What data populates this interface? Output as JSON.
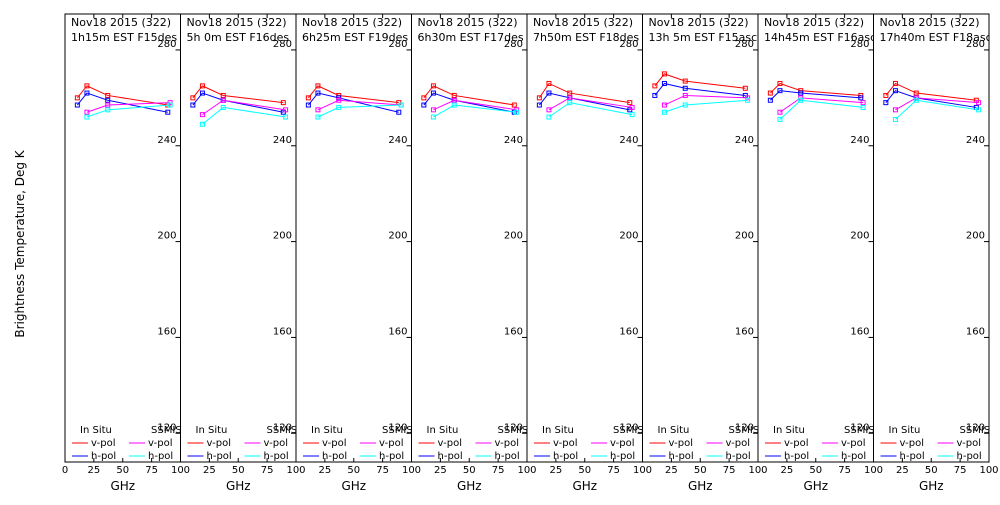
{
  "chart_data": {
    "type": "line",
    "ylabel": "Brightness Temperature, Deg K",
    "xlabel": "GHz",
    "xlim": [
      0,
      100
    ],
    "ylim": [
      108,
      295
    ],
    "yticks": [
      120,
      160,
      200,
      240,
      280
    ],
    "xticks": [
      0,
      25,
      50,
      75,
      100
    ],
    "xtick_labels_first": [
      "0",
      "25",
      "50",
      "75",
      "100"
    ],
    "xtick_labels_rest": [
      "",
      "25",
      "50",
      "75",
      "100"
    ],
    "legend": {
      "in_situ_title": "In Situ",
      "ssmis_title": "SSMIS",
      "v_pol": "v-pol",
      "h_pol": "h-pol"
    },
    "colors": {
      "insitu_v": "#ff0000",
      "insitu_h": "#0000ff",
      "ssmis_v": "#ff00ff",
      "ssmis_h": "#00ffff"
    },
    "panels": [
      {
        "line1": "Nov18 2015 (322)",
        "line2": "1h15m EST F15des",
        "insitu_x": [
          10.7,
          19,
          37,
          89
        ],
        "insitu_v": [
          260,
          265,
          261,
          257
        ],
        "insitu_h": [
          257,
          262,
          259,
          254
        ],
        "ssmis_x": [
          19,
          37,
          91
        ],
        "ssmis_v": [
          254,
          257,
          258
        ],
        "ssmis_h": [
          252,
          255,
          257
        ]
      },
      {
        "line1": "Nov18 2015 (322)",
        "line2": "5h 0m EST F16des",
        "insitu_x": [
          10.7,
          19,
          37,
          89
        ],
        "insitu_v": [
          260,
          265,
          261,
          258
        ],
        "insitu_h": [
          257,
          262,
          259,
          254
        ],
        "ssmis_x": [
          19,
          37,
          91
        ],
        "ssmis_v": [
          253,
          259,
          255
        ],
        "ssmis_h": [
          249,
          256,
          252
        ]
      },
      {
        "line1": "Nov18 2015 (322)",
        "line2": "6h25m EST F19des",
        "insitu_x": [
          10.7,
          19,
          37,
          89
        ],
        "insitu_v": [
          260,
          265,
          261,
          258
        ],
        "insitu_h": [
          257,
          262,
          260,
          254
        ],
        "ssmis_x": [
          19,
          37,
          91
        ],
        "ssmis_v": [
          255,
          259,
          257
        ],
        "ssmis_h": [
          252,
          256,
          257
        ]
      },
      {
        "line1": "Nov18 2015 (322)",
        "line2": "6h30m EST F17des",
        "insitu_x": [
          10.7,
          19,
          37,
          89
        ],
        "insitu_v": [
          260,
          265,
          261,
          257
        ],
        "insitu_h": [
          257,
          262,
          259,
          254
        ],
        "ssmis_x": [
          19,
          37,
          91
        ],
        "ssmis_v": [
          255,
          259,
          255
        ],
        "ssmis_h": [
          252,
          257,
          254
        ]
      },
      {
        "line1": "Nov18 2015 (322)",
        "line2": "7h50m EST F18des",
        "insitu_x": [
          10.7,
          19,
          37,
          89
        ],
        "insitu_v": [
          260,
          266,
          262,
          258
        ],
        "insitu_h": [
          257,
          262,
          260,
          255
        ],
        "ssmis_x": [
          19,
          37,
          91
        ],
        "ssmis_v": [
          255,
          260,
          256
        ],
        "ssmis_h": [
          252,
          258,
          253
        ]
      },
      {
        "line1": "Nov18 2015 (322)",
        "line2": "13h 5m EST F15asc",
        "insitu_x": [
          10.7,
          19,
          37,
          89
        ],
        "insitu_v": [
          265,
          270,
          267,
          264
        ],
        "insitu_h": [
          261,
          266,
          264,
          261
        ],
        "ssmis_x": [
          19,
          37,
          91
        ],
        "ssmis_v": [
          257,
          261,
          260
        ],
        "ssmis_h": [
          254,
          257,
          259
        ]
      },
      {
        "line1": "Nov18 2015 (322)",
        "line2": "14h45m EST F16asc",
        "insitu_x": [
          10.7,
          19,
          37,
          89
        ],
        "insitu_v": [
          262,
          266,
          263,
          261
        ],
        "insitu_h": [
          259,
          263,
          262,
          260
        ],
        "ssmis_x": [
          19,
          37,
          91
        ],
        "ssmis_v": [
          254,
          260,
          258
        ],
        "ssmis_h": [
          251,
          259,
          256
        ]
      },
      {
        "line1": "Nov18 2015 (322)",
        "line2": "17h40m EST F18asc",
        "insitu_x": [
          10.7,
          19,
          37,
          89
        ],
        "insitu_v": [
          261,
          266,
          262,
          259
        ],
        "insitu_h": [
          258,
          263,
          260,
          256
        ],
        "ssmis_x": [
          19,
          37,
          91
        ],
        "ssmis_v": [
          255,
          260,
          258
        ],
        "ssmis_h": [
          251,
          259,
          255
        ]
      }
    ]
  }
}
